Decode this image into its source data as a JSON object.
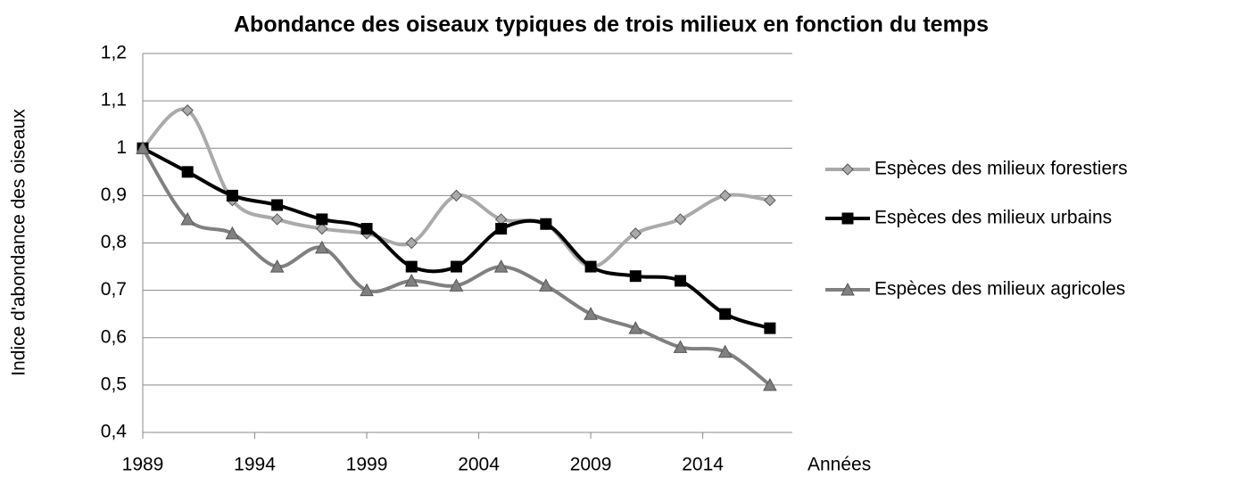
{
  "chart_data": {
    "type": "line",
    "title": "Abondance des oiseaux typiques de trois milieux en fonction du temps",
    "xlabel": "Années",
    "ylabel": "Indice d'abondance des oiseaux",
    "x": [
      1989,
      1991,
      1993,
      1995,
      1997,
      1999,
      2001,
      2003,
      2005,
      2007,
      2009,
      2011,
      2013,
      2015,
      2017
    ],
    "series": [
      {
        "name": "Espèces des milieux forestiers",
        "color": "#aaaaaa",
        "marker": "diamond",
        "values": [
          1,
          1.08,
          0.89,
          0.85,
          0.83,
          0.82,
          0.8,
          0.9,
          0.85,
          0.84,
          0.75,
          0.82,
          0.85,
          0.9,
          0.89
        ]
      },
      {
        "name": "Espèces des milieux urbains",
        "color": "#000000",
        "marker": "square",
        "values": [
          1,
          0.95,
          0.9,
          0.88,
          0.85,
          0.83,
          0.75,
          0.75,
          0.83,
          0.84,
          0.75,
          0.73,
          0.72,
          0.65,
          0.62
        ]
      },
      {
        "name": "Espèces des milieux agricoles",
        "color": "#808080",
        "marker": "triangle",
        "values": [
          1,
          0.85,
          0.82,
          0.75,
          0.79,
          0.7,
          0.72,
          0.71,
          0.75,
          0.71,
          0.65,
          0.62,
          0.58,
          0.57,
          0.5
        ]
      }
    ],
    "xlim": [
      1989,
      2018
    ],
    "xticks": [
      1989,
      1994,
      1999,
      2004,
      2009,
      2014
    ],
    "ylim": [
      0.4,
      1.2
    ],
    "yticks": [
      {
        "value": 0.4,
        "label": "0,4"
      },
      {
        "value": 0.5,
        "label": "0,5"
      },
      {
        "value": 0.6,
        "label": "0,6"
      },
      {
        "value": 0.7,
        "label": "0,7"
      },
      {
        "value": 0.8,
        "label": "0,8"
      },
      {
        "value": 0.9,
        "label": "0,9"
      },
      1,
      {
        "value": 1.1,
        "label": "1,1"
      },
      {
        "value": 1.2,
        "label": "1,2"
      }
    ],
    "grid": true
  }
}
